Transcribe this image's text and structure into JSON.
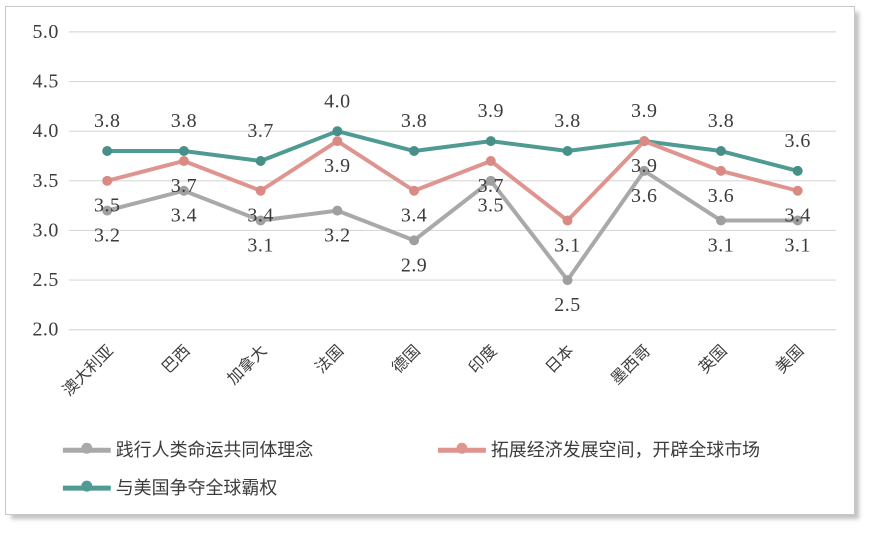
{
  "page": {
    "background": "#ffffff",
    "card_border_color": "#c8c8c8"
  },
  "chart_data": {
    "type": "line",
    "title": "",
    "xlabel": "",
    "ylabel": "",
    "categories": [
      "澳大利亚",
      "巴西",
      "加拿大",
      "法国",
      "德国",
      "印度",
      "日本",
      "墨西哥",
      "英国",
      "美国"
    ],
    "series": [
      {
        "name": "践行人类命运共同体理念",
        "color": "#a9a9a9",
        "marker_color": "#9f9f9f",
        "values": [
          3.2,
          3.4,
          3.1,
          3.2,
          2.9,
          3.5,
          2.5,
          3.6,
          3.1,
          3.1
        ]
      },
      {
        "name": "拓展经济发展空间，开辟全球市场",
        "color": "#e0948f",
        "marker_color": "#d98a85",
        "values": [
          3.5,
          3.7,
          3.4,
          3.9,
          3.4,
          3.7,
          3.1,
          3.9,
          3.6,
          3.4
        ]
      },
      {
        "name": "与美国争夺全球霸权",
        "color": "#4f9b94",
        "marker_color": "#47908a",
        "values": [
          3.8,
          3.8,
          3.7,
          4.0,
          3.8,
          3.9,
          3.8,
          3.9,
          3.8,
          3.6
        ]
      }
    ],
    "y_axis": {
      "min": 2.0,
      "max": 5.0,
      "step": 0.5,
      "tick_labels": [
        "2.0",
        "2.5",
        "3.0",
        "3.5",
        "4.0",
        "4.5",
        "5.0"
      ]
    },
    "ylim": [
      2.0,
      5.0
    ],
    "grid": true,
    "gridline_color": "#d9d9d9",
    "text_color": "#3c3c3c",
    "data_labels": true,
    "data_label_decimals": 1,
    "x_tick_rotation_deg": 45,
    "legend_position": "bottom",
    "marker": "circle",
    "line_width": 4
  }
}
